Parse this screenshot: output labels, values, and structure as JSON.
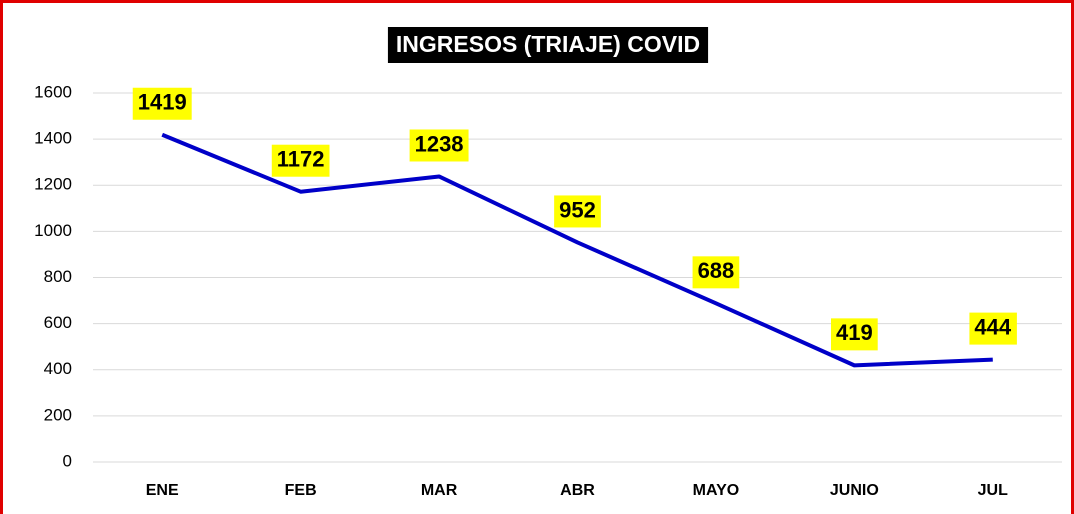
{
  "chart_data": {
    "type": "line",
    "title": "INGRESOS (TRIAJE) COVID",
    "categories": [
      "ENE",
      "FEB",
      "MAR",
      "ABR",
      "MAYO",
      "JUNIO",
      "JUL"
    ],
    "values": [
      1419,
      1172,
      1238,
      952,
      688,
      419,
      444
    ],
    "color": "#0000c8",
    "label_color": "#ffff00",
    "ylim": [
      0,
      1600
    ],
    "yticks": [
      0,
      200,
      400,
      600,
      800,
      1000,
      1200,
      1400,
      1600
    ],
    "grid": true
  }
}
